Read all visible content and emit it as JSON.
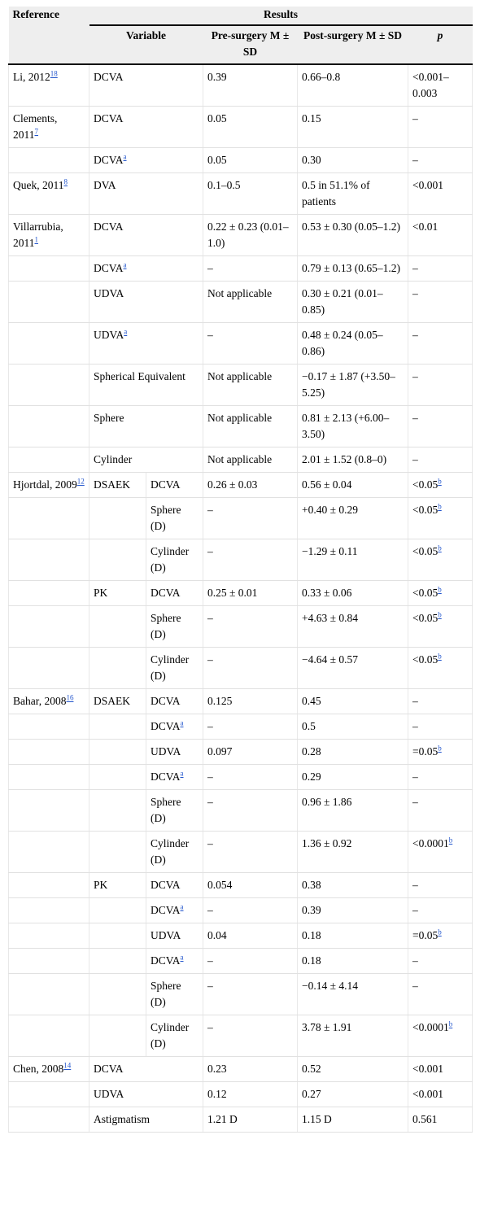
{
  "header": {
    "reference": "Reference",
    "results": "Results",
    "variable": "Variable",
    "pre": "Pre-surgery M ± SD",
    "post": "Post-surgery M ± SD",
    "p": "p"
  },
  "rows": [
    {
      "ref": "Li, 2012",
      "refsup": "18",
      "group": "",
      "var": "DCVA",
      "varsup": "",
      "pre": "0.39",
      "post": "0.66–0.8",
      "p": "<0.001–0.003",
      "psup": ""
    },
    {
      "ref": "Clements, 2011",
      "refsup": "7",
      "group": "",
      "var": "DCVA",
      "varsup": "",
      "pre": "0.05",
      "post": "0.15",
      "p": "–",
      "psup": ""
    },
    {
      "ref": "",
      "refsup": "",
      "group": "",
      "var": "DCVA",
      "varsup": "a",
      "pre": "0.05",
      "post": "0.30",
      "p": "–",
      "psup": ""
    },
    {
      "ref": "Quek, 2011",
      "refsup": "8",
      "group": "",
      "var": "DVA",
      "varsup": "",
      "pre": "0.1–0.5",
      "post": "0.5 in 51.1% of patients",
      "p": "<0.001",
      "psup": ""
    },
    {
      "ref": "Villarrubia, 2011",
      "refsup": "1",
      "group": "",
      "var": "DCVA",
      "varsup": "",
      "pre": "0.22 ± 0.23 (0.01–1.0)",
      "post": "0.53 ± 0.30 (0.05–1.2)",
      "p": "<0.01",
      "psup": ""
    },
    {
      "ref": "",
      "refsup": "",
      "group": "",
      "var": "DCVA",
      "varsup": "a",
      "pre": "–",
      "post": "0.79 ± 0.13 (0.65–1.2)",
      "p": "–",
      "psup": ""
    },
    {
      "ref": "",
      "refsup": "",
      "group": "",
      "var": "UDVA",
      "varsup": "",
      "pre": "Not applicable",
      "post": "0.30 ± 0.21 (0.01–0.85)",
      "p": "–",
      "psup": ""
    },
    {
      "ref": "",
      "refsup": "",
      "group": "",
      "var": "UDVA",
      "varsup": "a",
      "pre": "–",
      "post": "0.48 ± 0.24 (0.05–0.86)",
      "p": "–",
      "psup": ""
    },
    {
      "ref": "",
      "refsup": "",
      "group": "",
      "var": "Spherical Equivalent",
      "varsup": "",
      "pre": "Not applicable",
      "post": "−0.17 ± 1.87 (+3.50–5.25)",
      "p": "–",
      "psup": ""
    },
    {
      "ref": "",
      "refsup": "",
      "group": "",
      "var": "Sphere",
      "varsup": "",
      "pre": "Not applicable",
      "post": "0.81 ± 2.13 (+6.00–3.50)",
      "p": "–",
      "psup": ""
    },
    {
      "ref": "",
      "refsup": "",
      "group": "",
      "var": "Cylinder",
      "varsup": "",
      "pre": "Not applicable",
      "post": "2.01 ± 1.52 (0.8–0)",
      "p": "–",
      "psup": ""
    },
    {
      "ref": "Hjortdal, 2009",
      "refsup": "12",
      "group": "DSAEK",
      "var": "DCVA",
      "varsup": "",
      "pre": "0.26 ± 0.03",
      "post": "0.56 ± 0.04",
      "p": "<0.05",
      "psup": "b"
    },
    {
      "ref": "",
      "refsup": "",
      "group": "",
      "var": "Sphere (D)",
      "varsup": "",
      "pre": "–",
      "post": "+0.40 ± 0.29",
      "p": "<0.05",
      "psup": "b"
    },
    {
      "ref": "",
      "refsup": "",
      "group": "",
      "var": "Cylinder (D)",
      "varsup": "",
      "pre": "–",
      "post": "−1.29 ± 0.11",
      "p": "<0.05",
      "psup": "b"
    },
    {
      "ref": "",
      "refsup": "",
      "group": "PK",
      "var": "DCVA",
      "varsup": "",
      "pre": "0.25 ± 0.01",
      "post": "0.33 ± 0.06",
      "p": "<0.05",
      "psup": "b"
    },
    {
      "ref": "",
      "refsup": "",
      "group": "",
      "var": "Sphere (D)",
      "varsup": "",
      "pre": "–",
      "post": "+4.63 ± 0.84",
      "p": "<0.05",
      "psup": "b"
    },
    {
      "ref": "",
      "refsup": "",
      "group": "",
      "var": "Cylinder (D)",
      "varsup": "",
      "pre": "–",
      "post": "−4.64 ± 0.57",
      "p": "<0.05",
      "psup": "b"
    },
    {
      "ref": "Bahar, 2008",
      "refsup": "16",
      "group": "DSAEK",
      "var": "DCVA",
      "varsup": "",
      "pre": "0.125",
      "post": "0.45",
      "p": "–",
      "psup": ""
    },
    {
      "ref": "",
      "refsup": "",
      "group": "",
      "var": "DCVA",
      "varsup": "a",
      "pre": "–",
      "post": "0.5",
      "p": "–",
      "psup": ""
    },
    {
      "ref": "",
      "refsup": "",
      "group": "",
      "var": "UDVA",
      "varsup": "",
      "pre": "0.097",
      "post": "0.28",
      "p": "=0.05",
      "psup": "b"
    },
    {
      "ref": "",
      "refsup": "",
      "group": "",
      "var": "DCVA",
      "varsup": "a",
      "pre": "–",
      "post": "0.29",
      "p": "–",
      "psup": ""
    },
    {
      "ref": "",
      "refsup": "",
      "group": "",
      "var": "Sphere (D)",
      "varsup": "",
      "pre": "–",
      "post": "0.96 ± 1.86",
      "p": "–",
      "psup": ""
    },
    {
      "ref": "",
      "refsup": "",
      "group": "",
      "var": "Cylinder (D)",
      "varsup": "",
      "pre": "–",
      "post": "1.36 ± 0.92",
      "p": "<0.0001",
      "psup": "b"
    },
    {
      "ref": "",
      "refsup": "",
      "group": "PK",
      "var": "DCVA",
      "varsup": "",
      "pre": "0.054",
      "post": "0.38",
      "p": "–",
      "psup": ""
    },
    {
      "ref": "",
      "refsup": "",
      "group": "",
      "var": "DCVA",
      "varsup": "a",
      "pre": "–",
      "post": "0.39",
      "p": "–",
      "psup": ""
    },
    {
      "ref": "",
      "refsup": "",
      "group": "",
      "var": "UDVA",
      "varsup": "",
      "pre": "0.04",
      "post": "0.18",
      "p": "=0.05",
      "psup": "b"
    },
    {
      "ref": "",
      "refsup": "",
      "group": "",
      "var": "DCVA",
      "varsup": "a",
      "pre": "–",
      "post": "0.18",
      "p": "–",
      "psup": ""
    },
    {
      "ref": "",
      "refsup": "",
      "group": "",
      "var": "Sphere (D)",
      "varsup": "",
      "pre": "–",
      "post": "−0.14 ± 4.14",
      "p": "–",
      "psup": ""
    },
    {
      "ref": "",
      "refsup": "",
      "group": "",
      "var": "Cylinder (D)",
      "varsup": "",
      "pre": "–",
      "post": "3.78 ± 1.91",
      "p": "<0.0001",
      "psup": "b"
    },
    {
      "ref": "Chen, 2008",
      "refsup": "14",
      "group": "",
      "var": "DCVA",
      "varsup": "",
      "pre": "0.23",
      "post": "0.52",
      "p": "<0.001",
      "psup": ""
    },
    {
      "ref": "",
      "refsup": "",
      "group": "",
      "var": "UDVA",
      "varsup": "",
      "pre": "0.12",
      "post": "0.27",
      "p": "<0.001",
      "psup": ""
    },
    {
      "ref": "",
      "refsup": "",
      "group": "",
      "var": "Astigmatism",
      "varsup": "",
      "pre": "1.21 D",
      "post": "1.15 D",
      "p": "0.561",
      "psup": ""
    }
  ],
  "colors": {
    "header_bg": "#eeeeee",
    "link": "#2255cc",
    "rule": "#000000"
  }
}
